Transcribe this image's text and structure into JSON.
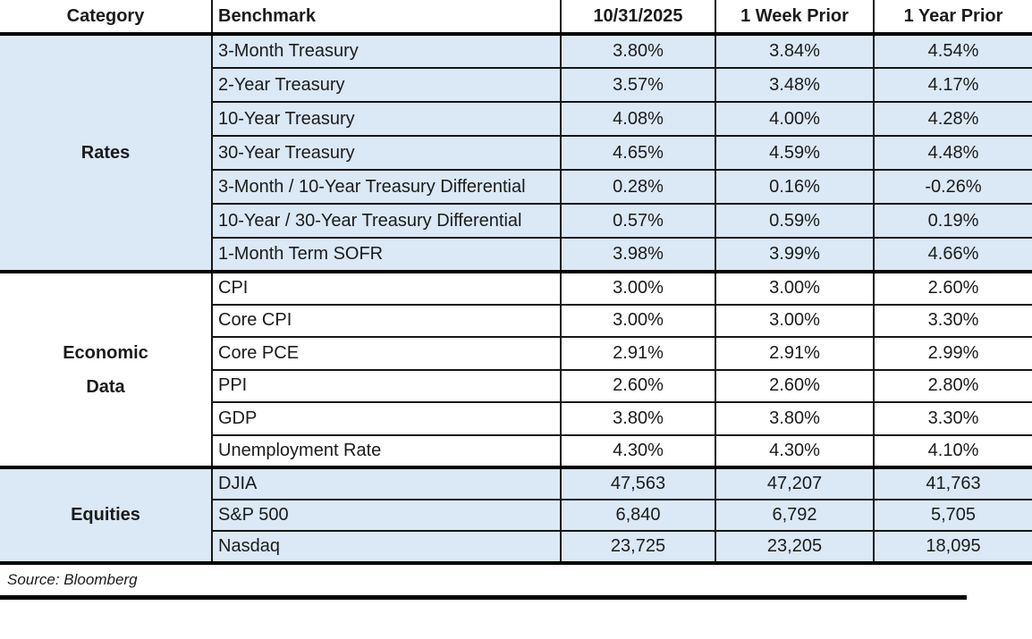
{
  "chart_data": {
    "type": "table",
    "columns": [
      "Category",
      "Benchmark",
      "10/31/2025",
      "1 Week Prior",
      "1 Year Prior"
    ],
    "sections": [
      {
        "category": "Rates",
        "rows": [
          {
            "benchmark": "3-Month Treasury",
            "current": "3.80%",
            "week_prior": "3.84%",
            "year_prior": "4.54%"
          },
          {
            "benchmark": "2-Year Treasury",
            "current": "3.57%",
            "week_prior": "3.48%",
            "year_prior": "4.17%"
          },
          {
            "benchmark": "10-Year Treasury",
            "current": "4.08%",
            "week_prior": "4.00%",
            "year_prior": "4.28%"
          },
          {
            "benchmark": "30-Year Treasury",
            "current": "4.65%",
            "week_prior": "4.59%",
            "year_prior": "4.48%"
          },
          {
            "benchmark": "3-Month / 10-Year Treasury Differential",
            "current": "0.28%",
            "week_prior": "0.16%",
            "year_prior": "-0.26%"
          },
          {
            "benchmark": "10-Year / 30-Year Treasury Differential",
            "current": "0.57%",
            "week_prior": "0.59%",
            "year_prior": "0.19%"
          },
          {
            "benchmark": "1-Month Term SOFR",
            "current": "3.98%",
            "week_prior": "3.99%",
            "year_prior": "4.66%"
          }
        ]
      },
      {
        "category": "Economic Data",
        "rows": [
          {
            "benchmark": "CPI",
            "current": "3.00%",
            "week_prior": "3.00%",
            "year_prior": "2.60%"
          },
          {
            "benchmark": "Core CPI",
            "current": "3.00%",
            "week_prior": "3.00%",
            "year_prior": "3.30%"
          },
          {
            "benchmark": "Core PCE",
            "current": "2.91%",
            "week_prior": "2.91%",
            "year_prior": "2.99%"
          },
          {
            "benchmark": "PPI",
            "current": "2.60%",
            "week_prior": "2.60%",
            "year_prior": "2.80%"
          },
          {
            "benchmark": "GDP",
            "current": "3.80%",
            "week_prior": "3.80%",
            "year_prior": "3.30%"
          },
          {
            "benchmark": "Unemployment Rate",
            "current": "4.30%",
            "week_prior": "4.30%",
            "year_prior": "4.10%"
          }
        ]
      },
      {
        "category": "Equities",
        "rows": [
          {
            "benchmark": "DJIA",
            "current": "47,563",
            "week_prior": "47,207",
            "year_prior": "41,763"
          },
          {
            "benchmark": "S&P 500",
            "current": "6,840",
            "week_prior": "6,792",
            "year_prior": "5,705"
          },
          {
            "benchmark": "Nasdaq",
            "current": "23,725",
            "week_prior": "23,205",
            "year_prior": "18,095"
          }
        ]
      }
    ],
    "source": "Source: Bloomberg",
    "layout": {
      "shaded_sections": [
        "Rates",
        "Equities"
      ],
      "section_highlight_color": "#dbe8f5",
      "grid_line_color": "#161616",
      "section_divider_color": "#000000"
    }
  }
}
